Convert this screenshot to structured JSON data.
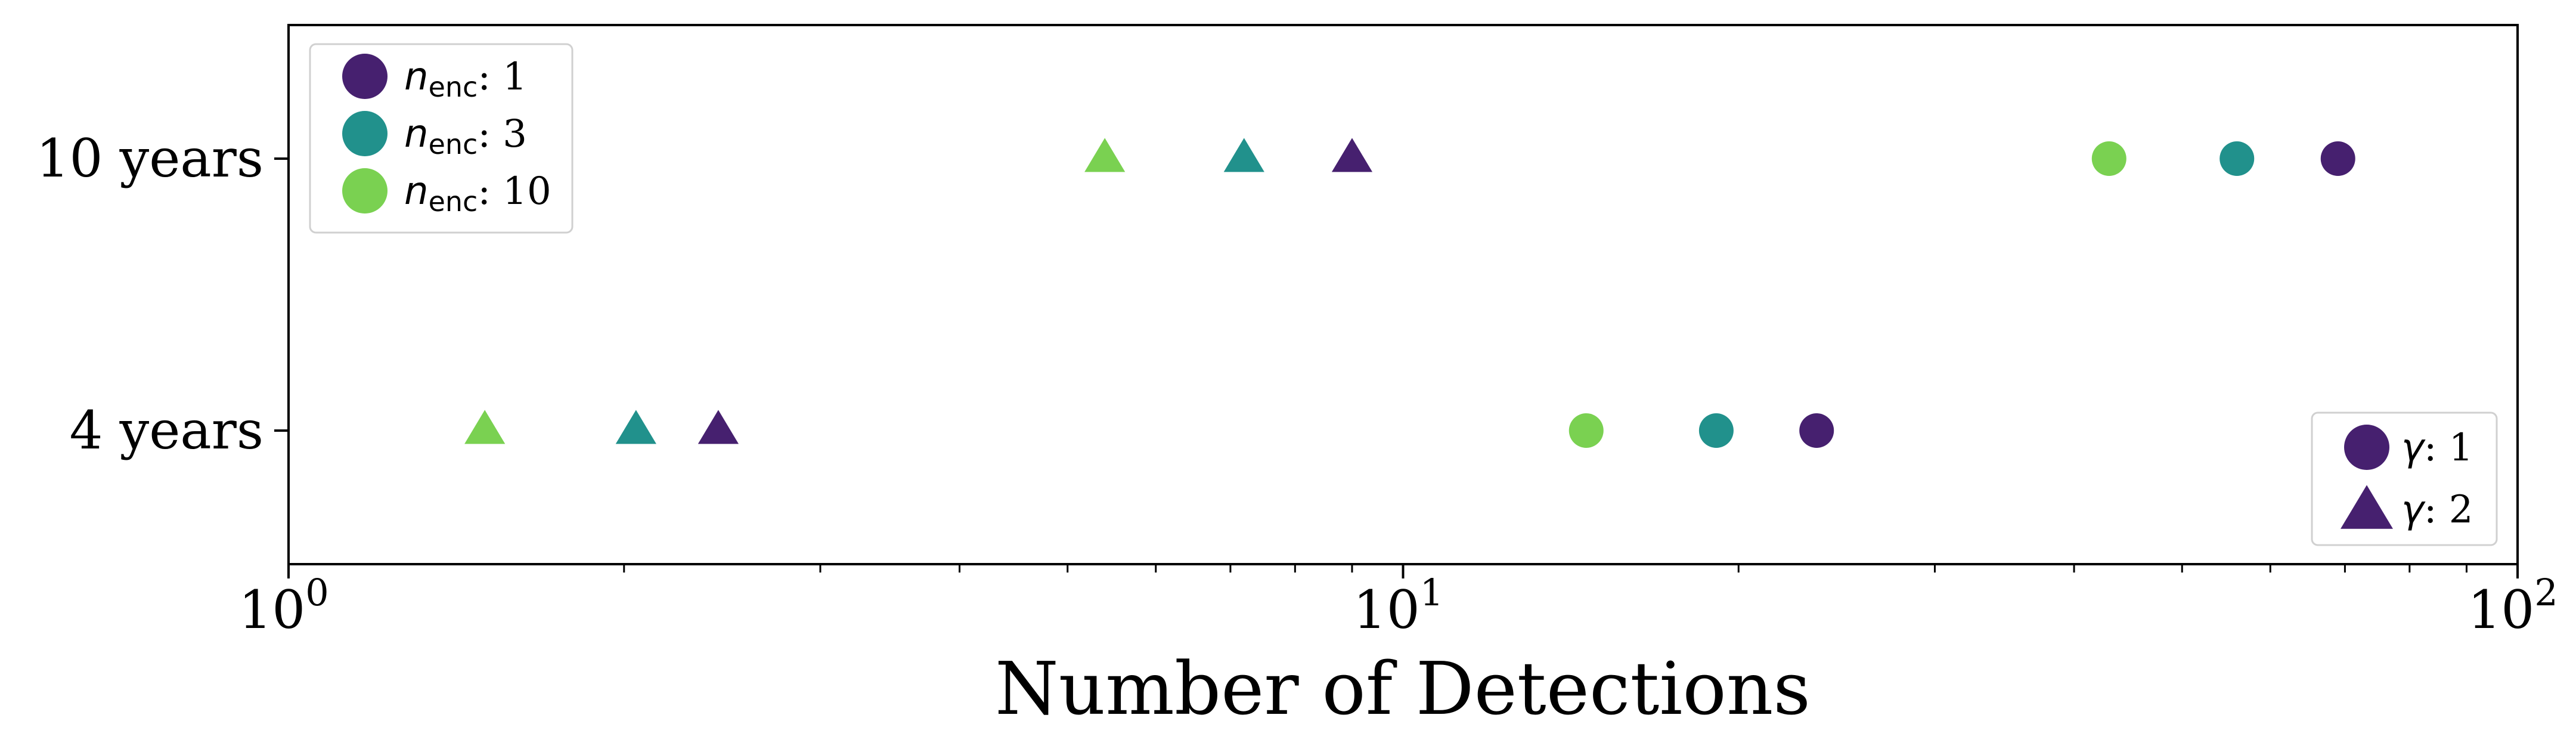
{
  "chart_data": {
    "type": "scatter",
    "xlabel": "Number of Detections",
    "xscale": "log",
    "xlim": [
      1,
      100
    ],
    "x_ticks": [
      {
        "base": "10",
        "exp": "0",
        "value": 1
      },
      {
        "base": "10",
        "exp": "1",
        "value": 10
      },
      {
        "base": "10",
        "exp": "2",
        "value": 100
      }
    ],
    "categories": [
      "10 years",
      "4 years"
    ],
    "colors": {
      "n_enc_1": "#46206f",
      "n_enc_3": "#21918c",
      "n_enc_10": "#7ad151"
    },
    "legend_color": {
      "placement": "upper-left",
      "entries": [
        {
          "label_symbol": "n",
          "label_sub": "enc",
          "label_value": ": 1",
          "color": "#46206f",
          "marker": "circle"
        },
        {
          "label_symbol": "n",
          "label_sub": "enc",
          "label_value": ": 3",
          "color": "#21918c",
          "marker": "circle"
        },
        {
          "label_symbol": "n",
          "label_sub": "enc",
          "label_value": ": 10",
          "color": "#7ad151",
          "marker": "circle"
        }
      ]
    },
    "legend_marker": {
      "placement": "lower-right",
      "entries": [
        {
          "label_symbol": "γ",
          "label_value": ": 1",
          "marker": "circle",
          "color": "#46206f"
        },
        {
          "label_symbol": "γ",
          "label_value": ": 2",
          "marker": "triangle",
          "color": "#46206f"
        }
      ]
    },
    "points": [
      {
        "category": "10 years",
        "x": 5.4,
        "marker": "triangle",
        "color": "#7ad151"
      },
      {
        "category": "10 years",
        "x": 7.2,
        "marker": "triangle",
        "color": "#21918c"
      },
      {
        "category": "10 years",
        "x": 9.0,
        "marker": "triangle",
        "color": "#46206f"
      },
      {
        "category": "10 years",
        "x": 43,
        "marker": "circle",
        "color": "#7ad151"
      },
      {
        "category": "10 years",
        "x": 56,
        "marker": "circle",
        "color": "#21918c"
      },
      {
        "category": "10 years",
        "x": 69,
        "marker": "circle",
        "color": "#46206f"
      },
      {
        "category": "4 years",
        "x": 1.5,
        "marker": "triangle",
        "color": "#7ad151"
      },
      {
        "category": "4 years",
        "x": 2.05,
        "marker": "triangle",
        "color": "#21918c"
      },
      {
        "category": "4 years",
        "x": 2.43,
        "marker": "triangle",
        "color": "#46206f"
      },
      {
        "category": "4 years",
        "x": 14.6,
        "marker": "circle",
        "color": "#7ad151"
      },
      {
        "category": "4 years",
        "x": 19.1,
        "marker": "circle",
        "color": "#21918c"
      },
      {
        "category": "4 years",
        "x": 23.5,
        "marker": "circle",
        "color": "#46206f"
      }
    ]
  }
}
